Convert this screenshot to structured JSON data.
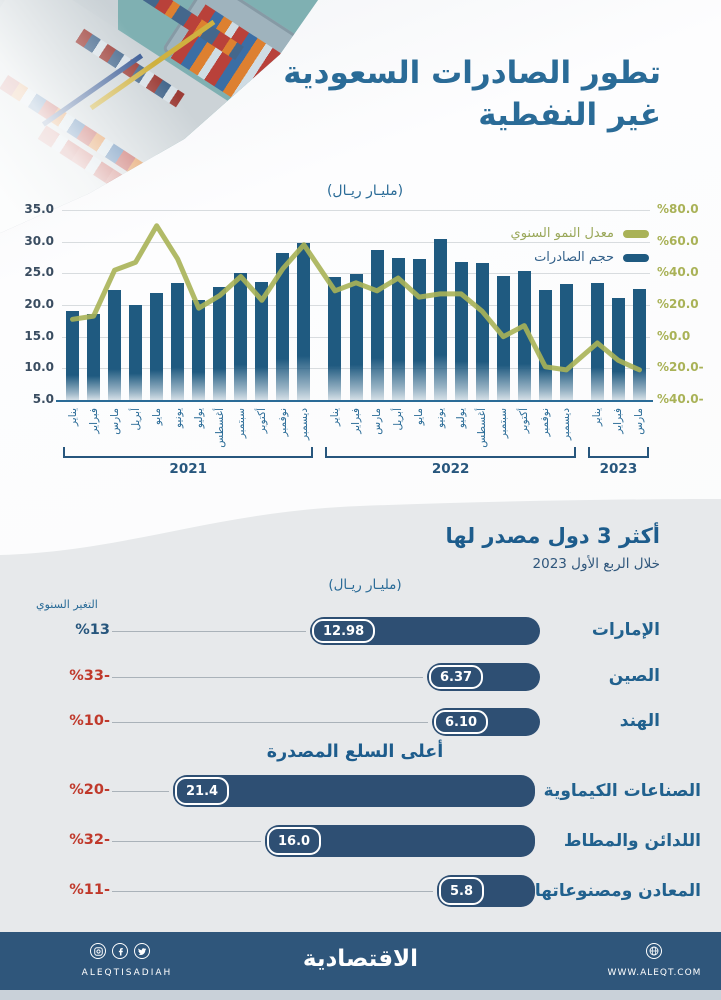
{
  "header": {
    "title_line1": "تطور الصادرات السعودية",
    "title_line2": "غير النفطية",
    "units": "(مليـار ريـال)"
  },
  "chart_data": {
    "type": "bar",
    "title": "تطور الصادرات السعودية غير النفطية",
    "unit": "مليار ريال",
    "categories": [
      "يناير",
      "فبراير",
      "مارس",
      "أبريل",
      "مايو",
      "يونيو",
      "يوليو",
      "أغسطس",
      "سبتمبر",
      "أكتوبر",
      "نوفمبر",
      "ديسمبر",
      "يناير",
      "فبراير",
      "مارس",
      "أبريل",
      "مايو",
      "يونيو",
      "يوليو",
      "أغسطس",
      "سبتمبر",
      "أكتوبر",
      "نوفمبر",
      "ديسمبر",
      "يناير",
      "فبراير",
      "مارس"
    ],
    "year_groups": [
      {
        "label": "2021",
        "from": 0,
        "to": 11
      },
      {
        "label": "2022",
        "from": 12,
        "to": 23
      },
      {
        "label": "2023",
        "from": 24,
        "to": 26
      }
    ],
    "series": [
      {
        "name": "حجم الصادرات",
        "type": "bar",
        "color": "#1f5a80",
        "values": [
          19.0,
          18.6,
          22.3,
          20.0,
          21.9,
          23.5,
          20.8,
          22.9,
          25.1,
          23.7,
          28.2,
          29.8,
          24.4,
          24.9,
          28.7,
          27.4,
          27.2,
          30.4,
          26.8,
          26.6,
          24.6,
          25.3,
          22.4,
          23.3,
          23.4,
          21.1,
          22.6
        ]
      },
      {
        "name": "معدل النمو السنوي",
        "type": "line",
        "color": "#a9b257",
        "axis": "right",
        "values": [
          11,
          13,
          42,
          47,
          70,
          49,
          18,
          26,
          38,
          23,
          43,
          58,
          29,
          34,
          29,
          37,
          25,
          27,
          27,
          16,
          0,
          7,
          -19,
          -21,
          -4,
          -15,
          -21
        ]
      }
    ],
    "left_axis": {
      "min": 5,
      "max": 35,
      "tick_values": [
        35,
        30,
        25,
        20,
        15,
        10,
        5
      ],
      "tick_labels": [
        "35.0",
        "30.0",
        "25.0",
        "20.0",
        "15.0",
        "10.0",
        "5.0"
      ]
    },
    "right_axis": {
      "min": -40,
      "max": 80,
      "tick_values": [
        80,
        60,
        40,
        20,
        0,
        -20,
        -40
      ],
      "tick_labels": [
        "%80.0",
        "%60.0",
        "%40.0",
        "%20.0",
        "%0.0",
        "%20.0-",
        "%40.0-"
      ]
    },
    "legend": [
      {
        "label": "معدل النمو السنوي",
        "color": "#a9b257"
      },
      {
        "label": "حجم الصادرات",
        "color": "#1f5a80"
      }
    ],
    "grid": true,
    "legend_position": "top-right"
  },
  "countries": {
    "title": "أكثر 3 دول مصدر لها",
    "subtitle": "خلال الربع الأول 2023",
    "units": "(مليـار ريـال)",
    "change_label": "التغير السنوي",
    "rows": [
      {
        "name": "الإمارات",
        "value": 12.98,
        "value_label": "12.98",
        "change": "%13",
        "negative": false
      },
      {
        "name": "الصين",
        "value": 6.37,
        "value_label": "6.37",
        "change": "%33-",
        "negative": true
      },
      {
        "name": "الهند",
        "value": 6.1,
        "value_label": "6.10",
        "change": "%10-",
        "negative": true
      }
    ]
  },
  "goods": {
    "title": "أعلى السلع المصدرة",
    "rows": [
      {
        "name": "الصناعات الكيماوية",
        "value": 21.4,
        "value_label": "21.4",
        "change": "%20-",
        "negative": true
      },
      {
        "name": "اللدائن والمطاط",
        "value": 16.0,
        "value_label": "16.0",
        "change": "%32-",
        "negative": true
      },
      {
        "name": "المعادن ومصنوعاتها",
        "value": 5.8,
        "value_label": "5.8",
        "change": "%11-",
        "negative": true
      }
    ]
  },
  "colors": {
    "accent_blue": "#2a6b97",
    "bar_blue": "#1f5a80",
    "row_bar_navy": "#2e4f73",
    "olive": "#a9b257",
    "negative_red": "#c0392b",
    "footer_navy": "#2f567b",
    "bg_gray": "#e7e9eb"
  },
  "footer": {
    "brand": "الاقتصادية",
    "handle": "ALEQTISADIAH",
    "url": "WWW.ALEQT.COM"
  }
}
